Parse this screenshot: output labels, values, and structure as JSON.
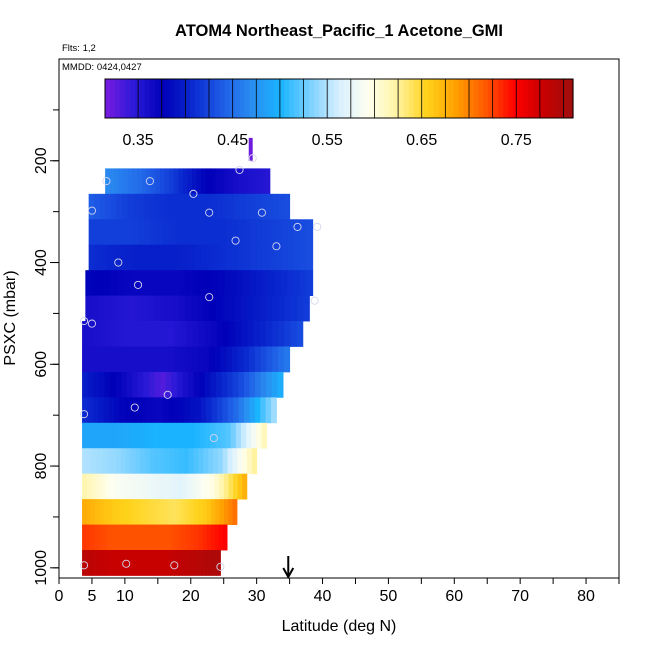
{
  "chart_data": {
    "type": "heatmap",
    "title": "ATOM4 Northeast_Pacific_1 Acetone_GMI",
    "flights_label": "Flts: 1,2",
    "dates_label": "MMDD: 0424,0427",
    "xlabel": "Latitude (deg N)",
    "ylabel": "PSXC (mbar)",
    "xlim": [
      0,
      85
    ],
    "ylim": [
      1020,
      0
    ],
    "x_ticks": [
      0,
      5,
      10,
      20,
      30,
      40,
      50,
      60,
      70,
      80
    ],
    "y_ticks": [
      200,
      400,
      600,
      800,
      1000
    ],
    "colorbar": {
      "range": [
        0.315,
        0.81
      ],
      "tick_values": [
        0.35,
        0.45,
        0.55,
        0.65,
        0.75
      ],
      "tick_labels": [
        "0.35",
        "0.45",
        "0.55",
        "0.65",
        "0.75"
      ],
      "colors": [
        "#7a1ce0",
        "#2a1ad8",
        "#0000b8",
        "#0a2ad0",
        "#1e5ce6",
        "#2a8cf0",
        "#19b4ff",
        "#7ad0ff",
        "#d8f0ff",
        "#fffff0",
        "#fff3a0",
        "#ffd21a",
        "#ffa000",
        "#ff5a00",
        "#ff0000",
        "#c80000",
        "#9e0e0e"
      ]
    },
    "marker": {
      "lat": 34.8,
      "label": "arrow"
    },
    "rows": [
      {
        "p_top": 215,
        "p_bot": 265,
        "lat_min": 7,
        "lat_max": 32,
        "values": [
          0.47,
          0.45,
          0.42,
          0.38,
          0.36,
          0.35
        ]
      },
      {
        "p_top": 265,
        "p_bot": 315,
        "lat_min": 4.5,
        "lat_max": 35,
        "values": [
          0.44,
          0.42,
          0.41,
          0.41,
          0.42,
          0.43
        ]
      },
      {
        "p_top": 315,
        "p_bot": 365,
        "lat_min": 4.5,
        "lat_max": 38.5,
        "values": [
          0.42,
          0.42,
          0.41,
          0.41,
          0.42,
          0.43
        ]
      },
      {
        "p_top": 365,
        "p_bot": 415,
        "lat_min": 4.5,
        "lat_max": 38.5,
        "values": [
          0.41,
          0.4,
          0.4,
          0.41,
          0.42,
          0.43
        ]
      },
      {
        "p_top": 415,
        "p_bot": 465,
        "lat_min": 4,
        "lat_max": 38.5,
        "values": [
          0.38,
          0.37,
          0.37,
          0.38,
          0.4,
          0.42
        ]
      },
      {
        "p_top": 465,
        "p_bot": 515,
        "lat_min": 4,
        "lat_max": 38,
        "values": [
          0.36,
          0.35,
          0.36,
          0.38,
          0.4,
          0.42
        ]
      },
      {
        "p_top": 515,
        "p_bot": 565,
        "lat_min": 3.5,
        "lat_max": 37,
        "values": [
          0.36,
          0.35,
          0.35,
          0.37,
          0.4,
          0.43
        ]
      },
      {
        "p_top": 565,
        "p_bot": 615,
        "lat_min": 3.5,
        "lat_max": 35,
        "values": [
          0.36,
          0.36,
          0.36,
          0.37,
          0.41,
          0.46
        ]
      },
      {
        "p_top": 615,
        "p_bot": 665,
        "lat_min": 3.5,
        "lat_max": 34,
        "values": [
          0.4,
          0.37,
          0.33,
          0.38,
          0.43,
          0.5
        ]
      },
      {
        "p_top": 665,
        "p_bot": 715,
        "lat_min": 3.5,
        "lat_max": 33,
        "values": [
          0.41,
          0.38,
          0.37,
          0.39,
          0.45,
          0.55
        ]
      },
      {
        "p_top": 715,
        "p_bot": 765,
        "lat_min": 3.5,
        "lat_max": 31.5,
        "values": [
          0.49,
          0.49,
          0.5,
          0.5,
          0.52,
          0.62
        ]
      },
      {
        "p_top": 765,
        "p_bot": 815,
        "lat_min": 3.5,
        "lat_max": 30,
        "values": [
          0.55,
          0.54,
          0.52,
          0.51,
          0.54,
          0.63
        ]
      },
      {
        "p_top": 815,
        "p_bot": 865,
        "lat_min": 3.5,
        "lat_max": 28.5,
        "values": [
          0.62,
          0.59,
          0.58,
          0.57,
          0.6,
          0.68
        ]
      },
      {
        "p_top": 865,
        "p_bot": 915,
        "lat_min": 3.5,
        "lat_max": 27,
        "values": [
          0.68,
          0.66,
          0.65,
          0.64,
          0.66,
          0.71
        ]
      },
      {
        "p_top": 915,
        "p_bot": 965,
        "lat_min": 3.5,
        "lat_max": 25.5,
        "values": [
          0.73,
          0.72,
          0.72,
          0.72,
          0.73,
          0.75
        ]
      },
      {
        "p_top": 965,
        "p_bot": 1015,
        "lat_min": 3.5,
        "lat_max": 24.5,
        "values": [
          0.79,
          0.78,
          0.78,
          0.78,
          0.79,
          0.8
        ]
      }
    ],
    "top_column": {
      "lat_min": 28.8,
      "lat_max": 29.4,
      "p_top": 155,
      "p_bot": 200,
      "value": 0.32
    },
    "sample_points": [
      {
        "lat": 7.2,
        "p": 240
      },
      {
        "lat": 13.8,
        "p": 240
      },
      {
        "lat": 29.4,
        "p": 195
      },
      {
        "lat": 27.4,
        "p": 218
      },
      {
        "lat": 20.4,
        "p": 265
      },
      {
        "lat": 5,
        "p": 298
      },
      {
        "lat": 22.8,
        "p": 302
      },
      {
        "lat": 30.8,
        "p": 302
      },
      {
        "lat": 36.2,
        "p": 330
      },
      {
        "lat": 39.2,
        "p": 330
      },
      {
        "lat": 26.8,
        "p": 357
      },
      {
        "lat": 33,
        "p": 368
      },
      {
        "lat": 9,
        "p": 400
      },
      {
        "lat": 12,
        "p": 444
      },
      {
        "lat": 22.8,
        "p": 468
      },
      {
        "lat": 38.8,
        "p": 475
      },
      {
        "lat": 3.8,
        "p": 515
      },
      {
        "lat": 5,
        "p": 520
      },
      {
        "lat": 16.5,
        "p": 660
      },
      {
        "lat": 11.5,
        "p": 685
      },
      {
        "lat": 3.8,
        "p": 698
      },
      {
        "lat": 23.5,
        "p": 745
      },
      {
        "lat": 3.8,
        "p": 995
      },
      {
        "lat": 10.2,
        "p": 992
      },
      {
        "lat": 17.5,
        "p": 995
      },
      {
        "lat": 24.5,
        "p": 998
      }
    ]
  }
}
